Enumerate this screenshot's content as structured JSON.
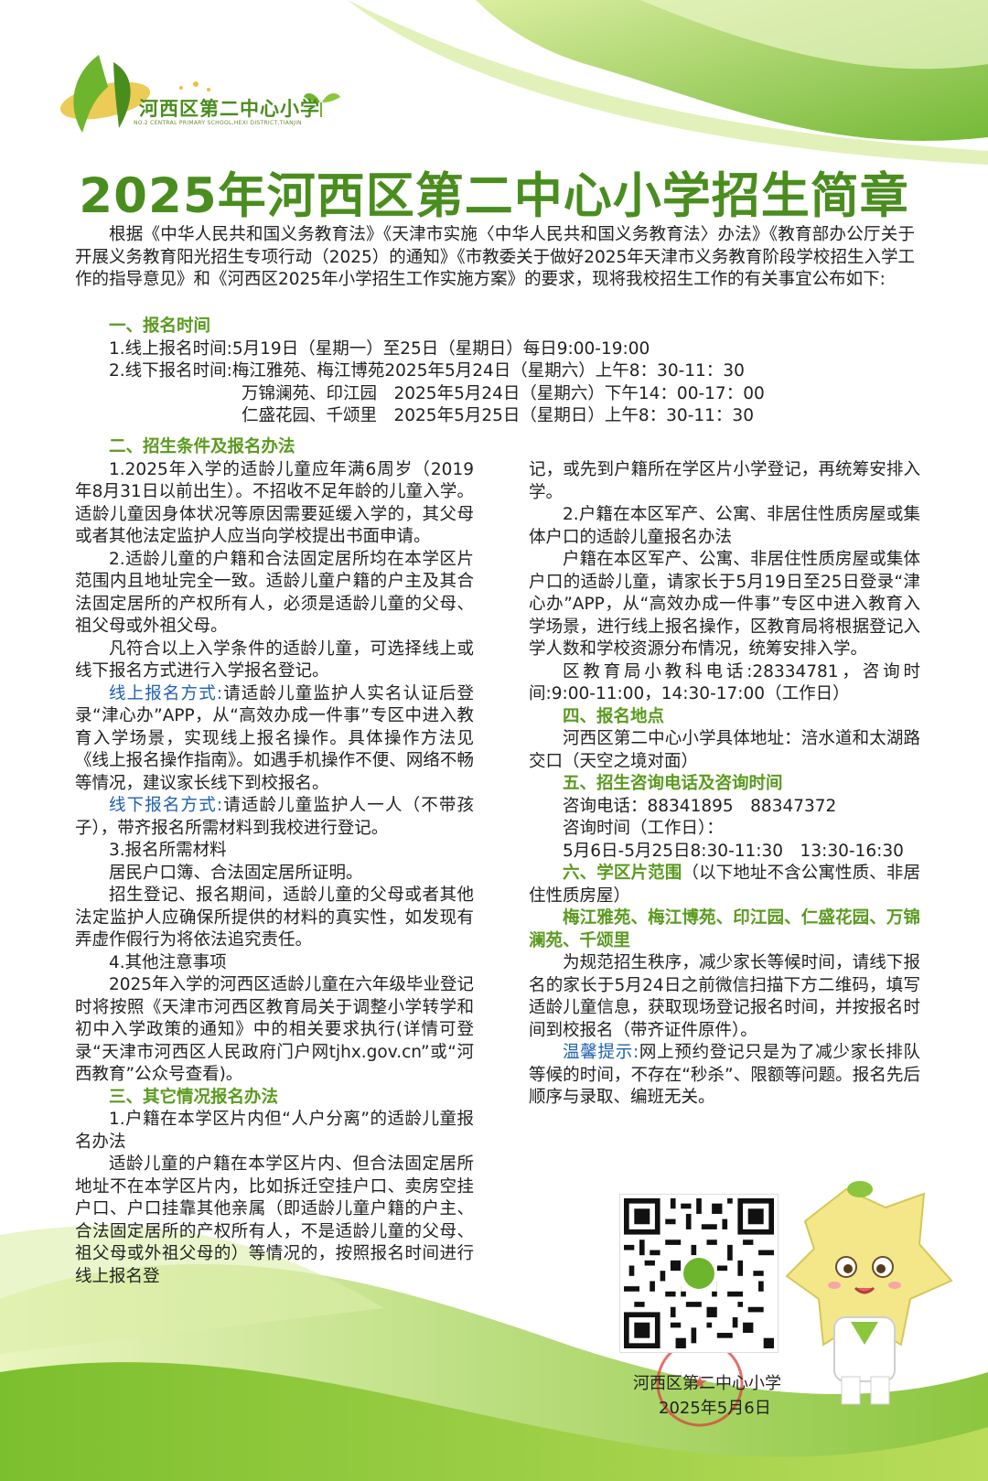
{
  "logo": {
    "name": "河西区第二中心小学",
    "subtitle": "NO.2 CENTRAL PRIMARY SCHOOL,HEXI DISTRICT,TIANJIN"
  },
  "title": "2025年河西区第二中心小学招生简章",
  "intro": "根据《中华人民共和国义务教育法》《天津市实施〈中华人民共和国义务教育法〉办法》《教育部办公厅关于开展义务教育阳光招生专项行动（2025）的通知》《市教委关于做好2025年天津市义务教育阶段学校招生入学工作的指导意见》和《河西区2025年小学招生工作实施方案》的要求，现将我校招生工作的有关事宜公布如下:",
  "section1": {
    "heading": "一、报名时间",
    "online": "1.线上报名时间:5月19日（星期一）至25日（星期日）每日9:00-19:00",
    "offline_label": "2.线下报名时间:",
    "offline": [
      "梅江雅苑、梅江博苑2025年5月24日（星期六）上午8：30-11：30",
      "万锦澜苑、印江园　2025年5月24日（星期六）下午14：00-17：00",
      "仁盛花园、千颂里　2025年5月25日（星期日）上午8：30-11：30"
    ]
  },
  "section2": {
    "heading": "二、招生条件及报名办法",
    "p1": "1.2025年入学的适龄儿童应年满6周岁（2019年8月31日以前出生）。不招收不足年龄的儿童入学。适龄儿童因身体状况等原因需要延缓入学的，其父母或者其他法定监护人应当向学校提出书面申请。",
    "p2": "2.适龄儿童的户籍和合法固定居所均在本学区片范围内且地址完全一致。适龄儿童户籍的户主及其合法固定居所的产权所有人，必须是适龄儿童的父母、祖父母或外祖父母。",
    "p3": "凡符合以上入学条件的适龄儿童，可选择线上或线下报名方式进行入学报名登记。",
    "online_label": "线上报名方式:",
    "online_text": "请适龄儿童监护人实名认证后登录“津心办”APP，从“高效办成一件事”专区中进入教育入学场景，实现线上报名操作。具体操作方法见《线上报名操作指南》。如遇手机操作不便、网络不畅等情况，建议家长线下到校报名。",
    "offline_label": "线下报名方式:",
    "offline_text": "请适龄儿童监护人一人（不带孩子），带齐报名所需材料到我校进行登记。",
    "p4": "3.报名所需材料",
    "p5": "居民户口簿、合法固定居所证明。",
    "p6": "招生登记、报名期间，适龄儿童的父母或者其他法定监护人应确保所提供的材料的真实性，如发现有弄虚作假行为将依法追究责任。",
    "p7": "4.其他注意事项",
    "p8": "2025年入学的河西区适龄儿童在六年级毕业登记时将按照《天津市河西区教育局关于调整小学转学和初中入学政策的通知》中的相关要求执行(详情可登录“天津市河西区人民政府门户网tjhx.gov.cn”或“河西教育”公众号查看)。"
  },
  "section3": {
    "heading": "三、其它情况报名办法",
    "p1": "1.户籍在本学区片内但“人户分离”的适龄儿童报名办法",
    "p2": "适龄儿童的户籍在本学区片内、但合法固定居所地址不在本学区片内，比如拆迁空挂户口、卖房空挂户口、户口挂靠其他亲属（即适龄儿童户籍的户主、合法固定居所的产权所有人，不是适龄儿童的父母、祖父母或外祖父母的）等情况的，按照报名时间进行线上报名登",
    "p2_cont": "记，或先到户籍所在学区片小学登记，再统筹安排入学。",
    "p3": "2.户籍在本区军产、公寓、非居住性质房屋或集体户口的适龄儿童报名办法",
    "p4": "户籍在本区军产、公寓、非居住性质房屋或集体户口的适龄儿童，请家长于5月19日至25日登录“津心办”APP，从“高效办成一件事”专区中进入教育入学场景，进行线上报名操作，区教育局将根据登记入学人数和学校资源分布情况，统筹安排入学。",
    "p5": "区教育局小教科电话:28334781，咨询时间:9:00-11:00，14:30-17:00（工作日）"
  },
  "section4": {
    "heading": "四、报名地点",
    "text": "河西区第二中心小学具体地址：涪水道和太湖路交口（天空之境对面）"
  },
  "section5": {
    "heading": "五、招生咨询电话及咨询时间",
    "phone": "咨询电话：88341895　88347372",
    "time_label": "咨询时间（工作日）：",
    "time": "5月6日-5月25日8:30-11:30　13:30-16:30"
  },
  "section6": {
    "heading": "六、学区片范围",
    "note": "（以下地址不含公寓性质、非居住性质房屋）",
    "areas": "梅江雅苑、梅江博苑、印江园、仁盛花园、万锦澜苑、千颂里",
    "p1": "为规范招生秩序，减少家长等候时间，请线下报名的家长于5月24日之前微信扫描下方二维码，填写适龄儿童信息，获取现场登记报名时间，并按报名时间到校报名（带齐证件原件）。",
    "tip_label": "温馨提示:",
    "tip_text": "网上预约登记只是为了减少家长排队等候的时间，不存在“秒杀”、限额等问题。报名先后顺序与录取、编班无关。"
  },
  "footer": {
    "school": "河西区第二中心小学",
    "date": "2025年5月6日"
  },
  "colors": {
    "green": "#5a9a1e",
    "dark_green": "#4a8d1f",
    "blue": "#2060b0"
  }
}
